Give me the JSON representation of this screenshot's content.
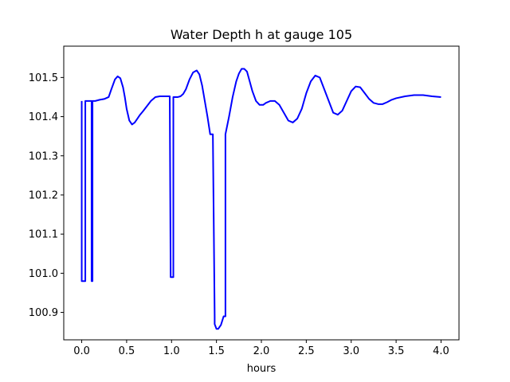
{
  "chart_data": {
    "type": "line",
    "title": "Water Depth h at gauge 105",
    "xlabel": "hours",
    "ylabel": "",
    "xlim": [
      -0.2,
      4.2
    ],
    "ylim": [
      100.83,
      101.58
    ],
    "xticks": [
      0.0,
      0.5,
      1.0,
      1.5,
      2.0,
      2.5,
      3.0,
      3.5,
      4.0
    ],
    "xtick_labels": [
      "0.0",
      "0.5",
      "1.0",
      "1.5",
      "2.0",
      "2.5",
      "3.0",
      "3.5",
      "4.0"
    ],
    "yticks": [
      100.9,
      101.0,
      101.1,
      101.2,
      101.3,
      101.4,
      101.5
    ],
    "ytick_labels": [
      "100.9",
      "101.0",
      "101.1",
      "101.2",
      "101.3",
      "101.4",
      "101.5"
    ],
    "grid": false,
    "series": [
      {
        "color": "#0000ff",
        "x": [
          0.0,
          0.0,
          0.04,
          0.04,
          0.06,
          0.06,
          0.08,
          0.1,
          0.11,
          0.11,
          0.12,
          0.12,
          0.15,
          0.2,
          0.25,
          0.3,
          0.33,
          0.37,
          0.4,
          0.43,
          0.46,
          0.48,
          0.5,
          0.53,
          0.56,
          0.59,
          0.62,
          0.65,
          0.68,
          0.72,
          0.77,
          0.82,
          0.87,
          0.91,
          0.95,
          0.98,
          0.99,
          1.0,
          1.0,
          1.02,
          1.02,
          1.04,
          1.07,
          1.1,
          1.13,
          1.16,
          1.2,
          1.24,
          1.28,
          1.31,
          1.34,
          1.37,
          1.4,
          1.43,
          1.46,
          1.48,
          1.48,
          1.5,
          1.52,
          1.55,
          1.58,
          1.6,
          1.6,
          1.64,
          1.68,
          1.72,
          1.75,
          1.78,
          1.81,
          1.84,
          1.87,
          1.9,
          1.94,
          1.98,
          2.02,
          2.05,
          2.1,
          2.15,
          2.2,
          2.25,
          2.3,
          2.35,
          2.4,
          2.45,
          2.5,
          2.55,
          2.6,
          2.65,
          2.7,
          2.75,
          2.8,
          2.85,
          2.9,
          2.95,
          3.0,
          3.05,
          3.1,
          3.15,
          3.2,
          3.25,
          3.3,
          3.35,
          3.4,
          3.45,
          3.5,
          3.6,
          3.7,
          3.8,
          3.9,
          4.0
        ],
        "y": [
          101.44,
          100.98,
          100.98,
          101.44,
          101.44,
          101.44,
          101.44,
          101.44,
          101.44,
          100.98,
          100.98,
          101.44,
          101.44,
          101.443,
          101.445,
          101.45,
          101.47,
          101.495,
          101.503,
          101.498,
          101.475,
          101.45,
          101.42,
          101.39,
          101.38,
          101.385,
          101.395,
          101.405,
          101.413,
          101.425,
          101.44,
          101.45,
          101.452,
          101.452,
          101.452,
          101.452,
          100.99,
          100.99,
          100.99,
          100.99,
          101.45,
          101.45,
          101.45,
          101.452,
          101.458,
          101.47,
          101.495,
          101.513,
          101.518,
          101.508,
          101.48,
          101.44,
          101.4,
          101.355,
          101.355,
          100.89,
          100.87,
          100.858,
          100.858,
          100.868,
          100.89,
          100.89,
          101.355,
          101.4,
          101.45,
          101.49,
          101.51,
          101.522,
          101.522,
          101.515,
          101.49,
          101.465,
          101.44,
          101.43,
          101.43,
          101.435,
          101.44,
          101.44,
          101.43,
          101.41,
          101.39,
          101.385,
          101.395,
          101.42,
          101.46,
          101.49,
          101.505,
          101.5,
          101.47,
          101.44,
          101.41,
          101.405,
          101.415,
          101.44,
          101.465,
          101.477,
          101.475,
          101.46,
          101.445,
          101.435,
          101.432,
          101.432,
          101.437,
          101.443,
          101.447,
          101.452,
          101.455,
          101.455,
          101.452,
          101.45
        ]
      }
    ]
  }
}
